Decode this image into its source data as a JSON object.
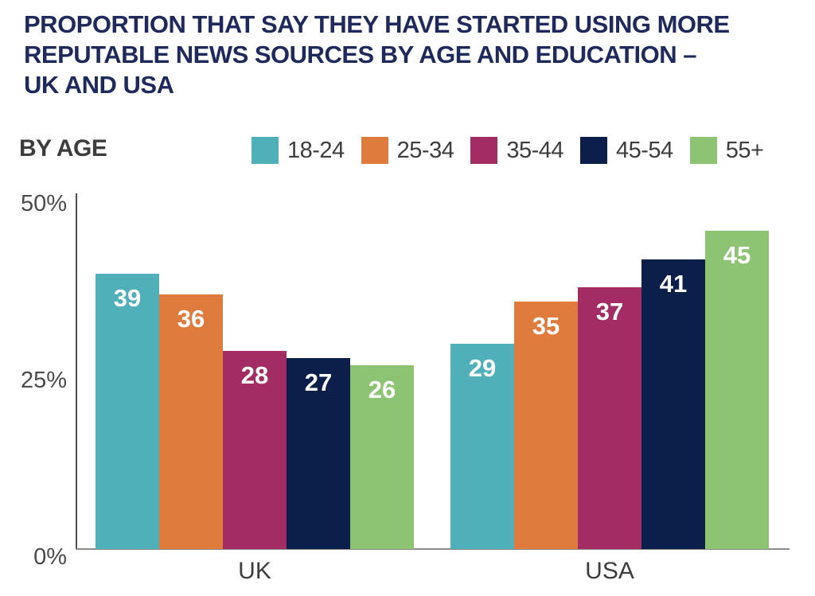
{
  "title_lines": [
    "PROPORTION THAT SAY THEY HAVE STARTED USING MORE",
    "REPUTABLE NEWS SOURCES BY AGE AND EDUCATION –",
    "UK AND USA"
  ],
  "section_label": "BY AGE",
  "legend": [
    {
      "label": "18-24",
      "color": "#4FB0BA"
    },
    {
      "label": "25-34",
      "color": "#E07B3E"
    },
    {
      "label": "35-44",
      "color": "#A22C63"
    },
    {
      "label": "45-54",
      "color": "#0C1F4A"
    },
    {
      "label": "55+",
      "color": "#8DC473"
    }
  ],
  "colors": {
    "title": "#1F2A5C",
    "text_dark": "#3D3D3D",
    "axis_gray": "#4A4A4A",
    "bar_value_text": "#FFFFFF"
  },
  "chart_data": {
    "type": "bar",
    "title": "PROPORTION THAT SAY THEY HAVE STARTED USING MORE REPUTABLE NEWS SOURCES BY AGE AND EDUCATION – UK AND USA",
    "subtitle": "BY AGE",
    "categories": [
      "UK",
      "USA"
    ],
    "series": [
      {
        "name": "18-24",
        "color": "#4FB0BA",
        "values": [
          39,
          29
        ]
      },
      {
        "name": "25-34",
        "color": "#E07B3E",
        "values": [
          36,
          35
        ]
      },
      {
        "name": "35-44",
        "color": "#A22C63",
        "values": [
          28,
          37
        ]
      },
      {
        "name": "45-54",
        "color": "#0C1F4A",
        "values": [
          27,
          41
        ]
      },
      {
        "name": "55+",
        "color": "#8DC473",
        "values": [
          26,
          45
        ]
      }
    ],
    "yticks": [
      {
        "label": "50%",
        "value": 50
      },
      {
        "label": "25%",
        "value": 25
      },
      {
        "label": "0%",
        "value": 0
      }
    ],
    "ylim": [
      0,
      50
    ],
    "unit": "percent",
    "grid": false,
    "legend_position": "top",
    "bar_labels_shown": true
  }
}
